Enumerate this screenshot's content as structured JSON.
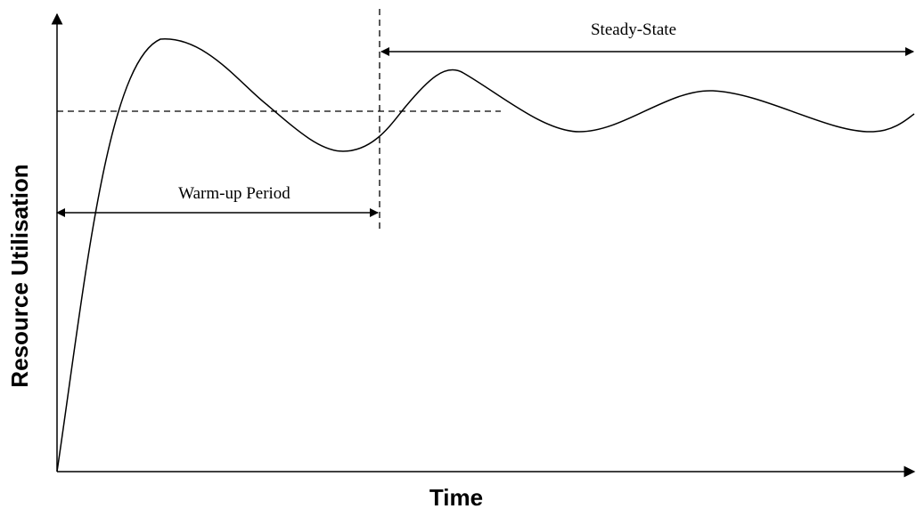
{
  "diagram": {
    "x_axis_label": "Time",
    "y_axis_label": "Resource Utilisation",
    "warmup_label": "Warm-up Period",
    "steady_label": "Steady-State"
  },
  "colors": {
    "line": "#000000",
    "background": "#ffffff"
  }
}
